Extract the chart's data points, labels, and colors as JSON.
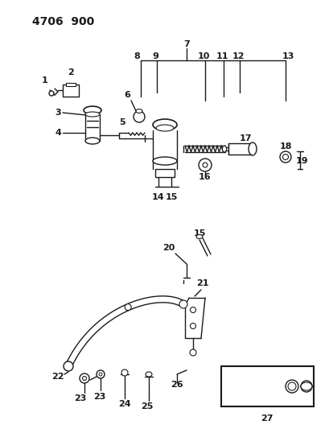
{
  "title": "4706  900",
  "bg_color": "#ffffff",
  "line_color": "#1a1a1a",
  "title_fontsize": 10,
  "label_fontsize": 7.5,
  "fig_width": 4.1,
  "fig_height": 5.33,
  "dpi": 100
}
